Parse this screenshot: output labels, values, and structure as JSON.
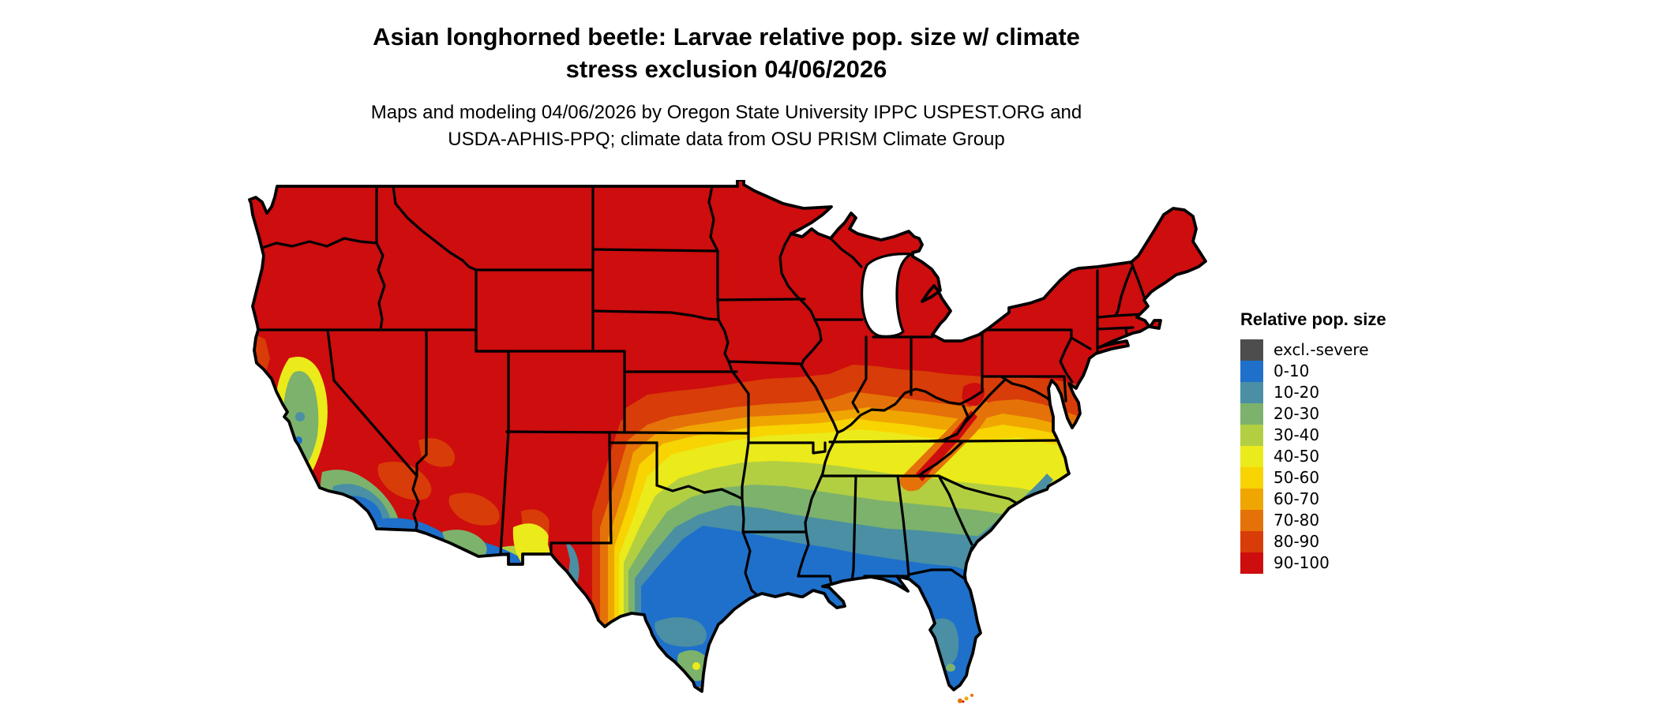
{
  "header": {
    "title_line1": "Asian longhorned beetle: Larvae relative pop. size w/ climate",
    "title_line2": "stress exclusion 04/06/2026",
    "subtitle_line1": "Maps and modeling 04/06/2026 by Oregon State University IPPC USPEST.ORG and",
    "subtitle_line2": "USDA-APHIS-PPQ; climate data from OSU PRISM Climate Group"
  },
  "legend": {
    "title": "Relative pop. size",
    "items": [
      {
        "label": "excl.-severe",
        "color": "#4d4d4d"
      },
      {
        "label": "0-10",
        "color": "#1e70cb"
      },
      {
        "label": "10-20",
        "color": "#4a8fa3"
      },
      {
        "label": "20-30",
        "color": "#7cb26c"
      },
      {
        "label": "30-40",
        "color": "#b2cf42"
      },
      {
        "label": "40-50",
        "color": "#ebea1a"
      },
      {
        "label": "50-60",
        "color": "#f7d402"
      },
      {
        "label": "60-70",
        "color": "#f0a600"
      },
      {
        "label": "70-80",
        "color": "#e57208"
      },
      {
        "label": "80-90",
        "color": "#d83c08"
      },
      {
        "label": "90-100",
        "color": "#cd0d0e"
      }
    ]
  },
  "map": {
    "type": "choropleth-raster",
    "region": "contiguous United States",
    "value_name": "Relative pop. size",
    "classes": [
      "excl.-severe",
      "0-10",
      "10-20",
      "20-30",
      "30-40",
      "40-50",
      "50-60",
      "60-70",
      "70-80",
      "80-90",
      "90-100"
    ],
    "pattern": "values 90-100 (red) across the northern US and interior West; decreasing bands southward through orange, yellow and green; 0-10 (blue) across southern Texas, the Gulf Coast and Florida; low values also in California's Central Valley, southern California and southern Arizona deserts; high-value (red/orange) streaks along the Appalachians"
  },
  "colors": {
    "red": "#cd0d0e",
    "redorange": "#d83c08",
    "orange": "#e57208",
    "amber": "#f0a600",
    "gold": "#f7d402",
    "yellow": "#ebea1a",
    "ygreen": "#b2cf42",
    "green": "#7cb26c",
    "teal": "#4a8fa3",
    "blue": "#1e70cb",
    "gray": "#4d4d4d",
    "water": "#ffffff",
    "line": "#000000"
  }
}
